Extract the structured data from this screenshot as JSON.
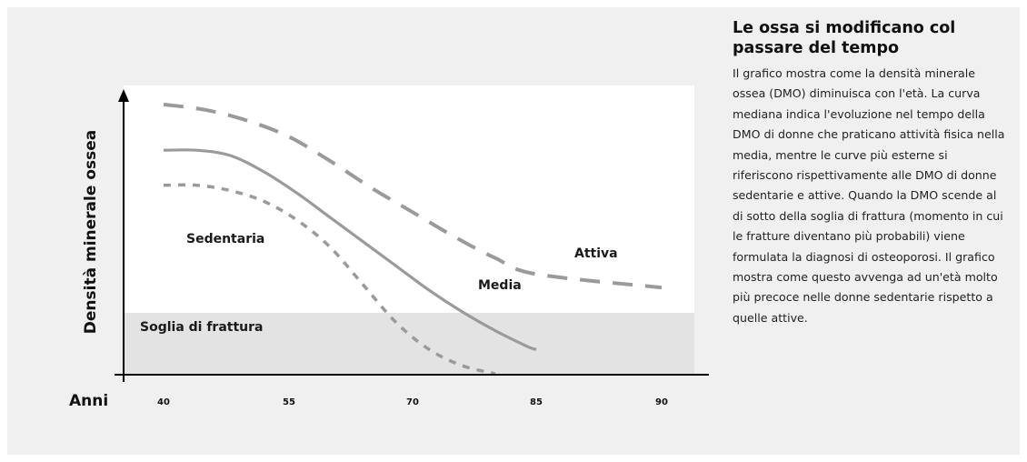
{
  "colors": {
    "background": "#f0f0f0",
    "plot_area": "#ffffff",
    "fracture_zone": "#e3e3e3",
    "curve": "#9a9a9a",
    "axis": "#000000"
  },
  "chart_data": {
    "type": "line",
    "title": "",
    "ylabel": "Densità minerale ossea",
    "xlabel": "Anni",
    "x_ticks": [
      40,
      55,
      70,
      85,
      90
    ],
    "xlim": [
      40,
      90
    ],
    "ylim": [
      0,
      100
    ],
    "grid": false,
    "series": [
      {
        "name": "Attiva",
        "style": "dashed",
        "x": [
          40,
          45,
          50,
          55,
          60,
          65,
          70,
          75,
          80,
          85,
          90
        ],
        "y": [
          97,
          95,
          91,
          85,
          76,
          66,
          57,
          48,
          40,
          34,
          29
        ]
      },
      {
        "name": "Media",
        "style": "solid",
        "x": [
          40,
          44,
          48,
          52,
          56,
          60,
          64,
          68,
          72,
          76,
          80,
          84,
          85
        ],
        "y": [
          80,
          80,
          78,
          72,
          64,
          55,
          46,
          37,
          28,
          20,
          13,
          7,
          6
        ]
      },
      {
        "name": "Sedentaria",
        "style": "dotted",
        "x": [
          40,
          44,
          48,
          52,
          56,
          60,
          64,
          68,
          72,
          76,
          80
        ],
        "y": [
          67,
          67,
          65,
          61,
          54,
          44,
          30,
          16,
          6,
          0,
          -3
        ]
      }
    ],
    "annotations": [
      {
        "text": "Soglia di frattura",
        "y_threshold": 20
      }
    ]
  },
  "sidebar": {
    "title": "Le ossa si modificano col passare del tempo",
    "body": "Il grafico mostra come la densità minerale ossea (DMO) diminuisca con l'età. La curva mediana indica l'evoluzione nel tempo della DMO di donne che praticano attività fisica nella media, mentre le curve più esterne si riferiscono rispettivamente alle DMO di donne sedentarie e attive. Quando la DMO scende al di sotto della soglia di frattura (momento in cui le fratture diventano più probabili) viene formulata la diagnosi di osteoporosi. Il grafico mostra come questo avvenga ad un'età molto più precoce nelle donne sedentarie rispetto a quelle attive."
  }
}
